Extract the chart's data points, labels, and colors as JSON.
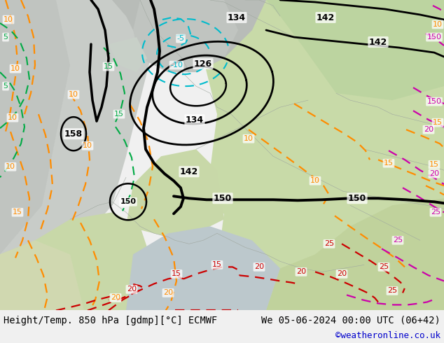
{
  "title_left": "Height/Temp. 850 hPa [gdmp][°C] ECMWF",
  "title_right": "We 05-06-2024 00:00 UTC (06+42)",
  "copyright": "©weatheronline.co.uk",
  "figsize": [
    6.34,
    4.9
  ],
  "dpi": 100,
  "map_facecolor": "#d8d8d8",
  "bottom_bar_color": "#f0f0f0",
  "colors": {
    "land_green_light": "#c8dba8",
    "land_green_dark": "#b0cc88",
    "land_gray": "#b8bcb8",
    "sea_gray": "#c8ccc8",
    "bg_gray": "#d0d4d0",
    "black": "#000000",
    "orange": "#ff8c00",
    "green_contour": "#00aa44",
    "cyan_contour": "#00bbcc",
    "red_contour": "#cc0000",
    "magenta_contour": "#cc00aa",
    "copyright_blue": "#0000cc"
  }
}
